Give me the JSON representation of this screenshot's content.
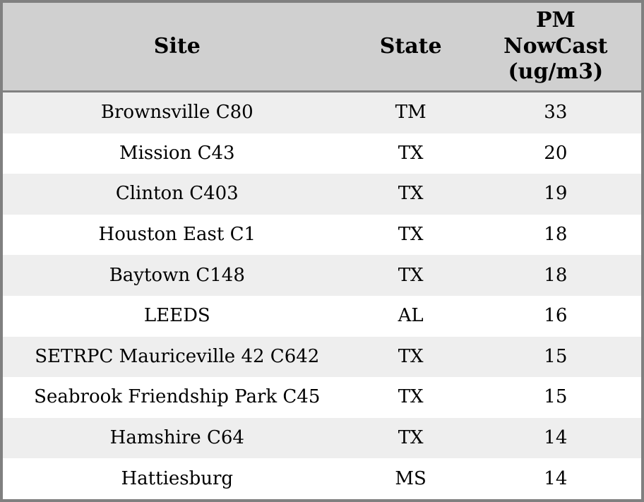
{
  "chart_data": {
    "type": "table",
    "columns": [
      "Site",
      "State",
      "PM NowCast (ug/m3)"
    ],
    "rows": [
      [
        "Brownsville C80",
        "TM",
        33
      ],
      [
        "Mission C43",
        "TX",
        20
      ],
      [
        "Clinton C403",
        "TX",
        19
      ],
      [
        "Houston East C1",
        "TX",
        18
      ],
      [
        "Baytown C148",
        "TX",
        18
      ],
      [
        "LEEDS",
        "AL",
        16
      ],
      [
        "SETRPC Mauriceville 42 C642",
        "TX",
        15
      ],
      [
        "Seabrook Friendship Park C45",
        "TX",
        15
      ],
      [
        "Hamshire C64",
        "TX",
        14
      ],
      [
        "Hattiesburg",
        "MS",
        14
      ]
    ]
  },
  "colors": {
    "border": "#808080",
    "header_bg": "#d0d0d0",
    "row_odd_bg": "#eeeeee",
    "row_even_bg": "#ffffff",
    "text": "#000000"
  }
}
